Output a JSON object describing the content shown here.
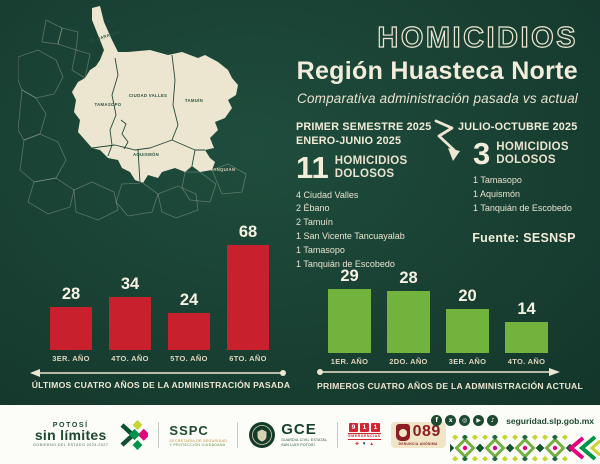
{
  "header": {
    "title_outline": "HOMICIDIOS",
    "title": "Región Huasteca Norte",
    "subtitle": "Comparativa administración pasada vs actual"
  },
  "map": {
    "labels": [
      "EL NARANJO",
      "CIUDAD VALLES",
      "TAMUÍN",
      "TAMASOPO",
      "AQUISMÓN",
      "TANQUIÁN"
    ]
  },
  "period_past": {
    "title_line1": "PRIMER SEMESTRE 2025",
    "title_line2": "ENERO-JUNIO 2025",
    "big_number": "11",
    "big_label_line1": "HOMICIDIOS",
    "big_label_line2": "DOLOSOS",
    "items": [
      "4 Ciudad Valles",
      "2 Ébano",
      "2 Tamuín",
      "1 San Vicente Tancuayalab",
      "1 Tamasopo",
      "1 Tanquián de Escobedo"
    ]
  },
  "period_current": {
    "title_line1": "JULIO-OCTUBRE 2025",
    "big_number": "3",
    "big_label_line1": "HOMICIDIOS",
    "big_label_line2": "DOLOSOS",
    "items": [
      "1 Tamasopo",
      "1 Aquismón",
      "1 Tanquián de Escobedo"
    ]
  },
  "source": "Fuente: SESNSP",
  "chart_data": [
    {
      "type": "bar",
      "categories": [
        "3ER. AÑO",
        "4TO. AÑO",
        "5TO. AÑO",
        "6TO. AÑO"
      ],
      "values": [
        28,
        34,
        24,
        68
      ],
      "bar_color": "#c8202c",
      "caption": "ÚLTIMOS CUATRO AÑOS DE LA ADMINISTRACIÓN PASADA",
      "series_name": "administración pasada",
      "ylim": [
        0,
        70
      ],
      "grid": false,
      "value_labels": true
    },
    {
      "type": "bar",
      "categories": [
        "1ER. AÑO",
        "2DO. AÑO",
        "3ER. AÑO",
        "4TO. AÑO"
      ],
      "values": [
        29,
        28,
        20,
        14
      ],
      "bar_color": "#72b33e",
      "caption": "PRIMEROS CUATRO AÑOS DE LA ADMINISTRACIÓN ACTUAL",
      "series_name": "administración actual",
      "ylim": [
        0,
        70
      ],
      "grid": false,
      "value_labels": true
    }
  ],
  "footer": {
    "potosi": {
      "top": "POTOSÍ",
      "main": "sin límites",
      "sub": "GOBIERNO DEL ESTADO 2024-2027"
    },
    "sspc": {
      "name": "SSPC",
      "sub1": "SECRETARÍA DE SEGURIDAD",
      "sub2": "Y PROTECCIÓN CIUDADANA"
    },
    "gce": {
      "name": "GCE",
      "sub1": "GUARDIA CIVIL ESTATAL",
      "sub2": "SAN LUIS POTOSÍ"
    },
    "e911": {
      "digits": [
        "9",
        "1",
        "1"
      ],
      "sub": "EMERGENCIAS"
    },
    "e089": {
      "number": "089",
      "sub": "DENUNCIA ANÓNIMA"
    },
    "website": "seguridad.slp.gob.mx",
    "social_icons": [
      "facebook-icon",
      "x-icon",
      "instagram-icon",
      "youtube-icon",
      "tiktok-icon"
    ]
  },
  "colors": {
    "background_dark_green": "#173c30",
    "cream": "#ece6d2",
    "bar_red": "#c8202c",
    "bar_green": "#72b33e",
    "brand_dark_green": "#1d4a2f",
    "brand_pink": "#e5007e",
    "brand_lime": "#c7d530",
    "alert_red": "#d22630",
    "deep_red": "#8c1d26"
  }
}
